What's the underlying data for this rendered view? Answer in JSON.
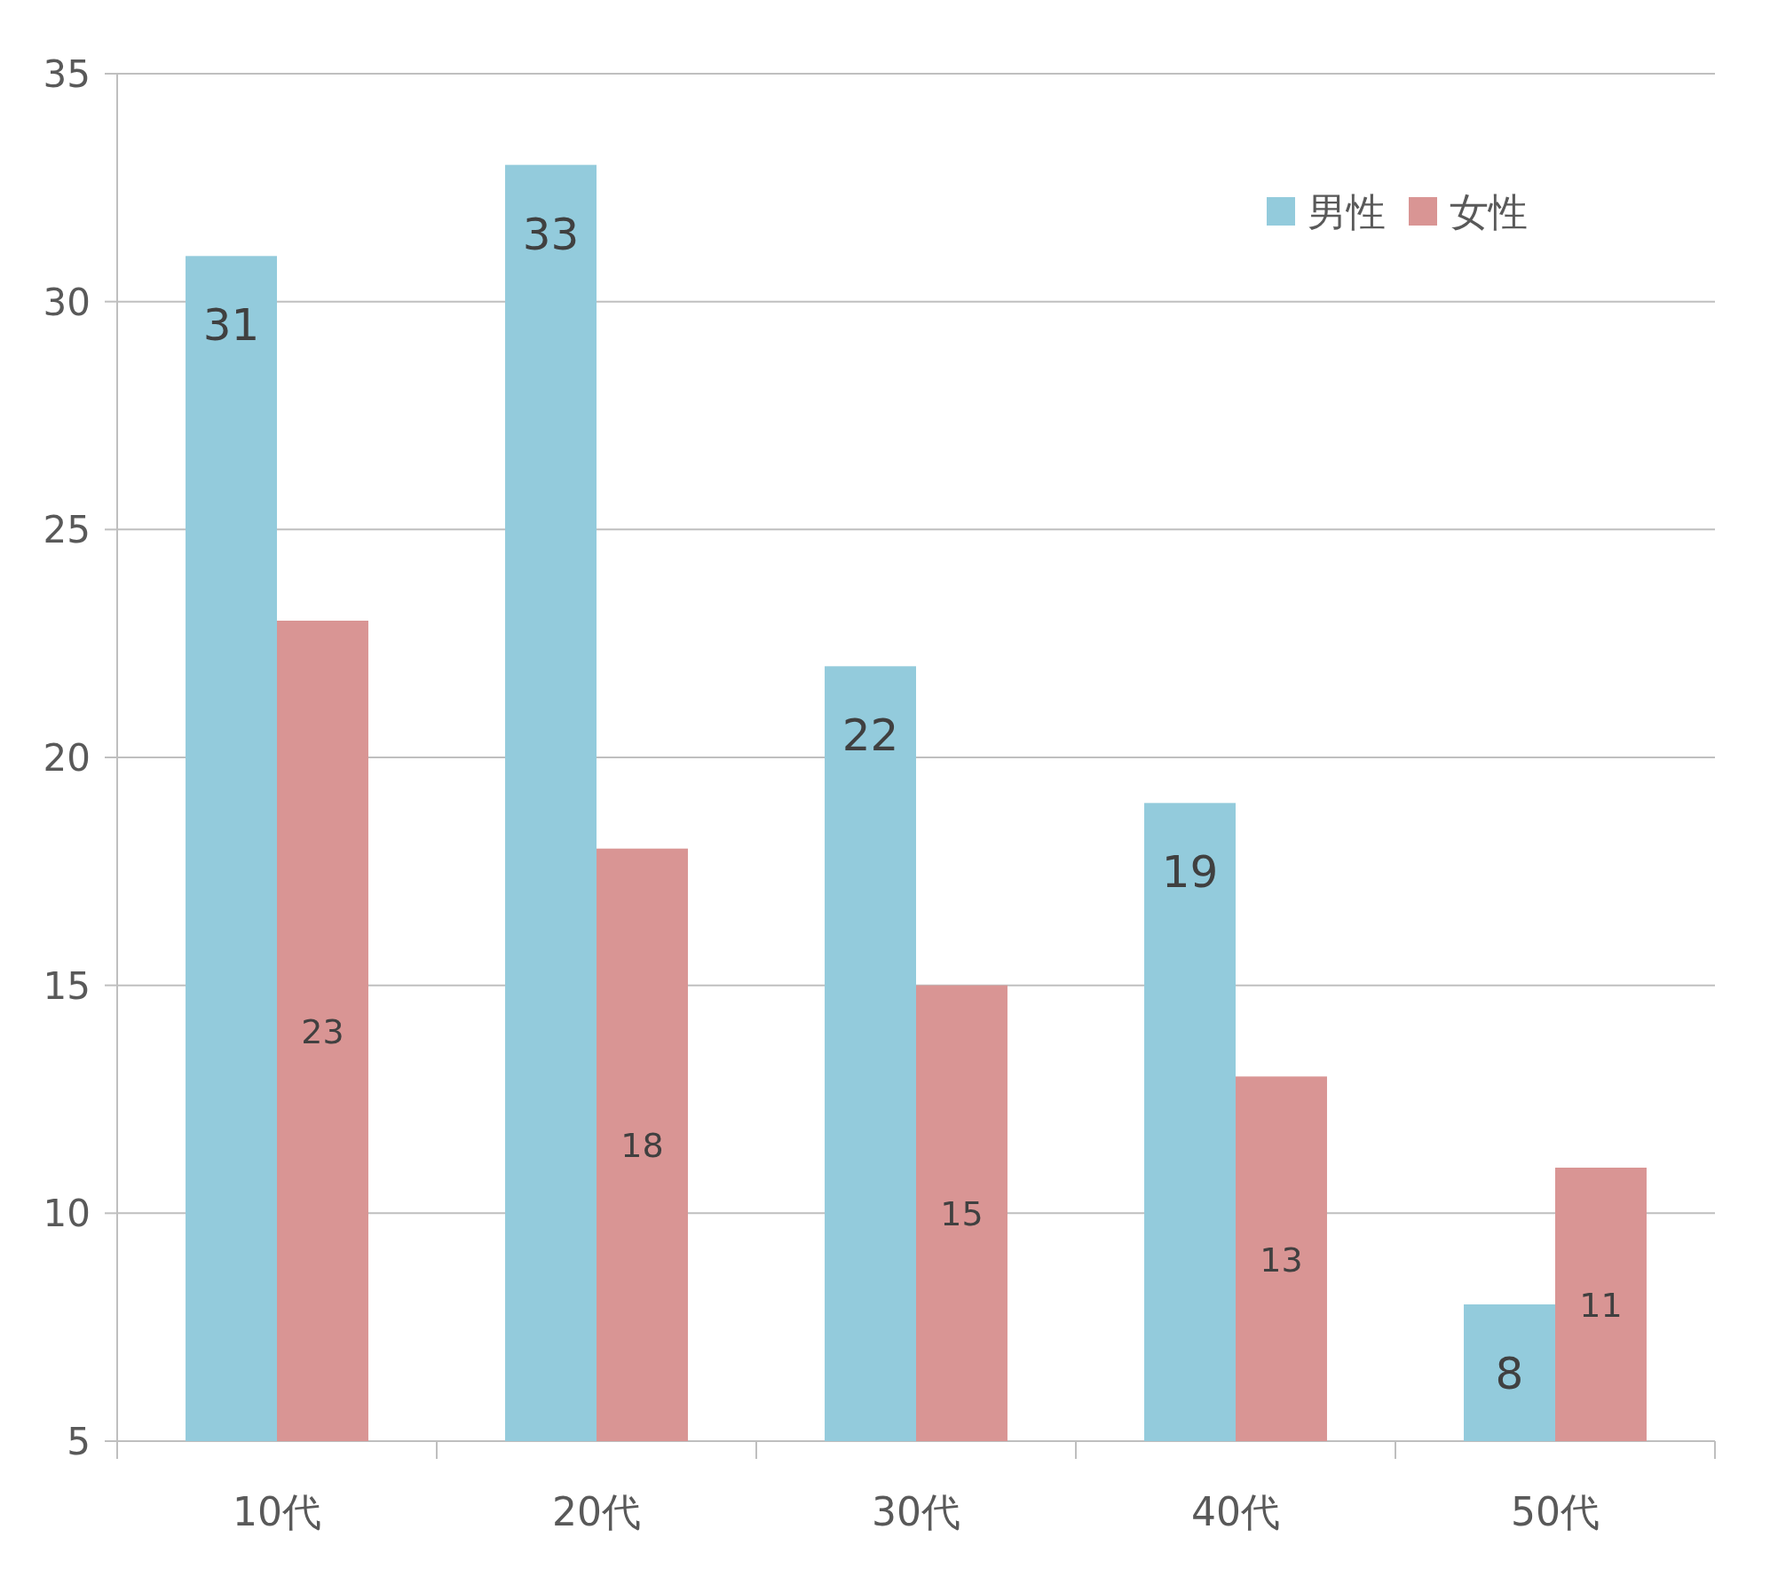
{
  "chart_data": {
    "type": "bar",
    "categories": [
      "10代",
      "20代",
      "30代",
      "40代",
      "50代"
    ],
    "series": [
      {
        "name": "男性",
        "color": "#93cbdc",
        "values": [
          31,
          33,
          22,
          19,
          8
        ]
      },
      {
        "name": "女性",
        "color": "#d99594",
        "values": [
          23,
          18,
          15,
          13,
          11
        ]
      }
    ],
    "ylim": [
      5,
      35
    ],
    "yticks": [
      5,
      10,
      15,
      20,
      25,
      30,
      35
    ],
    "grid": "y",
    "legend": "top right",
    "data_labels": true
  }
}
